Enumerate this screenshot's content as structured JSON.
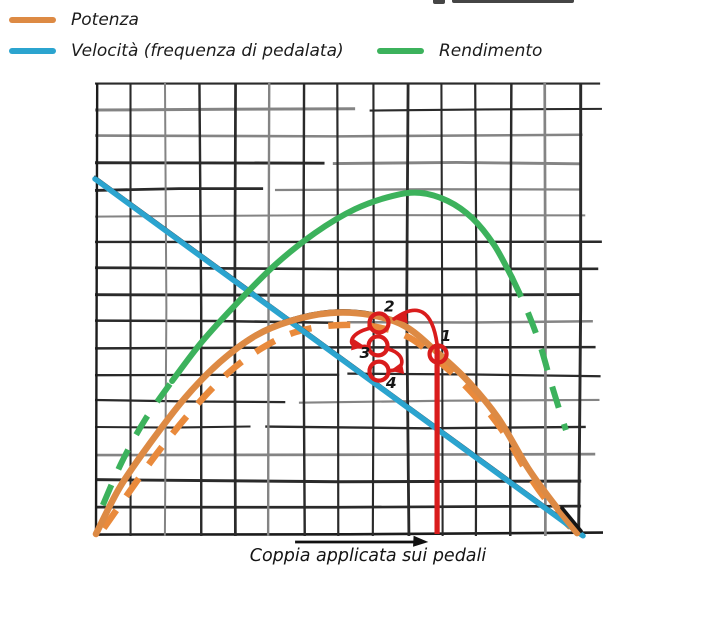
{
  "page": {
    "background": "#ffffff"
  },
  "legend": {
    "items": [
      {
        "label": "Potenza",
        "color": "#dd8a44"
      },
      {
        "label": "Velocità (frequenza di pedalata)",
        "color": "#2ba4cf"
      },
      {
        "label": "Rendimento",
        "color": "#3cb25c"
      }
    ]
  },
  "chart_data": {
    "type": "line",
    "title": "",
    "xlabel": "Coppia applicata sui pedali",
    "ylabel": "",
    "xlim": [
      0,
      1
    ],
    "ylim": [
      0,
      1
    ],
    "x_ticks": [],
    "y_ticks": [],
    "grid": true,
    "grid_style": "hand-drawn graph paper",
    "grid_colors": {
      "dark": "#2a2a2a",
      "light": "#848484",
      "axis": "#1c1c1c"
    },
    "legend_position": "top-left",
    "series": [
      {
        "name": "Potenza (curva tratteggiata)",
        "color": "#e98a3c",
        "style": "dashed",
        "width": 6.5,
        "points": [
          [
            0.018,
            0.013
          ],
          [
            0.064,
            0.084
          ],
          [
            0.129,
            0.182
          ],
          [
            0.203,
            0.28
          ],
          [
            0.273,
            0.358
          ],
          [
            0.342,
            0.413
          ],
          [
            0.412,
            0.449
          ],
          [
            0.494,
            0.464
          ],
          [
            0.576,
            0.46
          ],
          [
            0.645,
            0.436
          ],
          [
            0.711,
            0.378
          ],
          [
            0.773,
            0.313
          ],
          [
            0.834,
            0.231
          ],
          [
            0.891,
            0.127
          ],
          [
            0.941,
            0.053
          ],
          [
            0.982,
            0.007
          ]
        ]
      },
      {
        "name": "Velocità (frequenza di pedalata)",
        "color": "#2ba4cf",
        "style": "solid",
        "width": 5.5,
        "underlay": true,
        "points": [
          [
            0.0,
            0.789
          ],
          [
            1.0,
            -0.004
          ]
        ]
      },
      {
        "name": "Potenza",
        "color": "#dd8a44",
        "style": "solid",
        "width": 6.5,
        "underlay": true,
        "points": [
          [
            0.002,
            0.0
          ],
          [
            0.051,
            0.104
          ],
          [
            0.113,
            0.202
          ],
          [
            0.184,
            0.302
          ],
          [
            0.256,
            0.382
          ],
          [
            0.328,
            0.44
          ],
          [
            0.4,
            0.473
          ],
          [
            0.482,
            0.491
          ],
          [
            0.563,
            0.487
          ],
          [
            0.635,
            0.462
          ],
          [
            0.701,
            0.404
          ],
          [
            0.764,
            0.34
          ],
          [
            0.826,
            0.258
          ],
          [
            0.887,
            0.147
          ],
          [
            0.939,
            0.069
          ],
          [
            0.988,
            0.002
          ]
        ]
      },
      {
        "name": "Rendimento",
        "color": "#3cb25c",
        "style": "mixed",
        "width": 6,
        "points": [
          [
            0.016,
            0.064
          ],
          [
            0.055,
            0.16
          ],
          [
            0.102,
            0.253
          ],
          [
            0.158,
            0.34
          ],
          [
            0.219,
            0.427
          ],
          [
            0.291,
            0.513
          ],
          [
            0.369,
            0.598
          ],
          [
            0.451,
            0.669
          ],
          [
            0.533,
            0.722
          ],
          [
            0.609,
            0.751
          ],
          [
            0.666,
            0.758
          ],
          [
            0.723,
            0.74
          ],
          [
            0.773,
            0.702
          ],
          [
            0.818,
            0.642
          ],
          [
            0.854,
            0.571
          ],
          [
            0.885,
            0.498
          ],
          [
            0.912,
            0.42
          ],
          [
            0.934,
            0.338
          ],
          [
            0.953,
            0.271
          ],
          [
            0.965,
            0.231
          ]
        ],
        "segments": [
          {
            "style": "dashed",
            "from": 0,
            "to": 3
          },
          {
            "style": "solid",
            "from": 3,
            "to": 14
          },
          {
            "style": "dashed",
            "from": 14,
            "to": 19
          }
        ]
      }
    ],
    "annotations": {
      "color": "#d91c1c",
      "points": [
        {
          "label": "1",
          "x": 0.703,
          "y": 0.4,
          "r": 8.5,
          "label_x": 0.719,
          "label_y": 0.44
        },
        {
          "label": "2",
          "x": 0.582,
          "y": 0.469,
          "r": 9.5,
          "label_x": 0.603,
          "label_y": 0.506
        },
        {
          "label": "3",
          "x": 0.58,
          "y": 0.418,
          "r": 9.5,
          "label_x": 0.553,
          "label_y": 0.402
        },
        {
          "label": "4",
          "x": 0.582,
          "y": 0.362,
          "r": 9.5,
          "label_x": 0.607,
          "label_y": 0.336
        }
      ],
      "vertical_line": {
        "x": 0.701,
        "y_from": 0.0,
        "y_to": 0.416
      },
      "arrows": [
        {
          "name": "arrow-1-to-2",
          "kind": "quadratic",
          "points": [
            [
              0.701,
              0.422
            ],
            [
              0.686,
              0.535
            ],
            [
              0.613,
              0.478
            ]
          ],
          "head_dir": [
            -1,
            -0.12
          ]
        },
        {
          "name": "arrow-2-to-3",
          "kind": "cubic",
          "points": [
            [
              0.566,
              0.458
            ],
            [
              0.517,
              0.447
            ],
            [
              0.513,
              0.41
            ],
            [
              0.553,
              0.417
            ]
          ],
          "head_dir": [
            1,
            -0.15
          ]
        },
        {
          "name": "arrow-3-to-4",
          "kind": "cubic",
          "points": [
            [
              0.596,
              0.412
            ],
            [
              0.637,
              0.404
            ],
            [
              0.639,
              0.365
            ],
            [
              0.605,
              0.363
            ]
          ],
          "head_dir": [
            -1,
            -0.2
          ]
        }
      ],
      "x_axis_arrow": {
        "x0": 0.41,
        "x1": 0.683,
        "color": "#111111"
      }
    }
  }
}
